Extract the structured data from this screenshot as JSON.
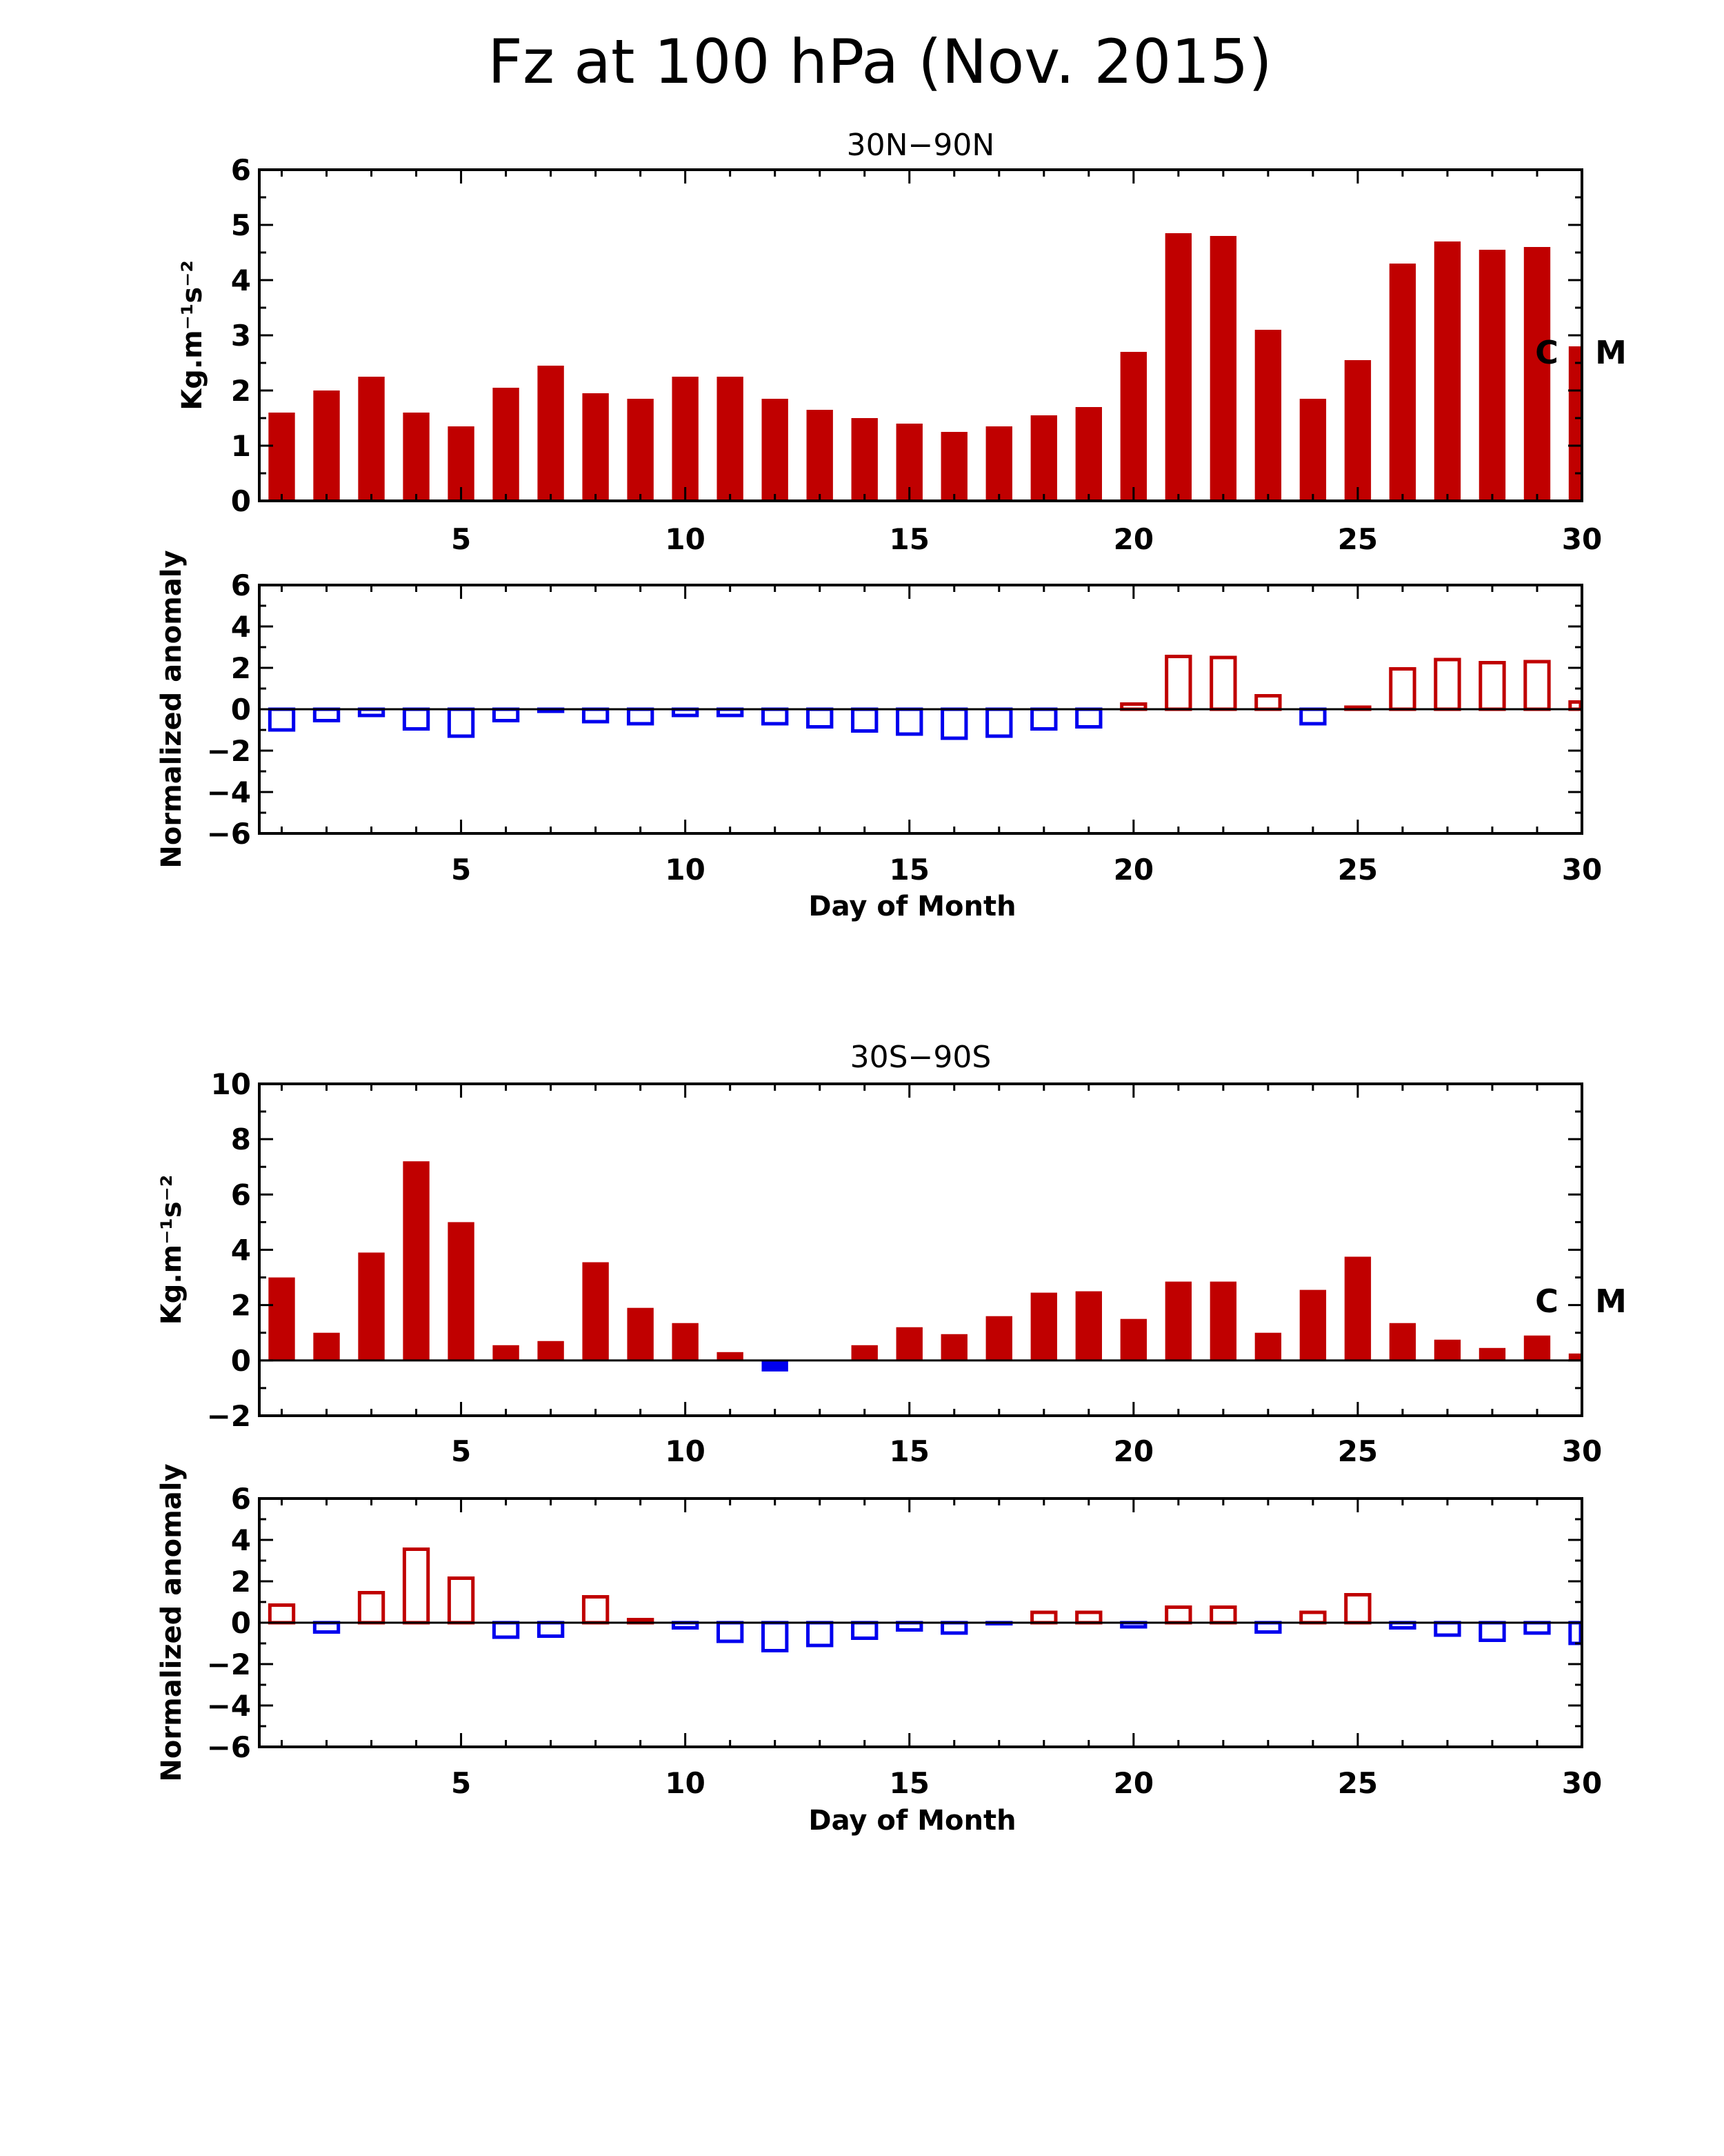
{
  "figure": {
    "title": "Fz at 100 hPa (Nov. 2015)"
  },
  "chart_data": [
    {
      "type": "bar",
      "title": "30N−90N",
      "xlabel": "",
      "ylabel": "Kg.m⁻¹s⁻²",
      "xlim": [
        1,
        30
      ],
      "ylim": [
        0,
        6
      ],
      "xticks": [
        5,
        10,
        15,
        20,
        25,
        30
      ],
      "yticks": [
        0,
        1,
        2,
        3,
        4,
        5,
        6
      ],
      "x": [
        1,
        2,
        3,
        4,
        5,
        6,
        7,
        8,
        9,
        10,
        11,
        12,
        13,
        14,
        15,
        16,
        17,
        18,
        19,
        20,
        21,
        22,
        23,
        24,
        25,
        26,
        27,
        28,
        29,
        30
      ],
      "values": [
        1.6,
        2.0,
        2.25,
        1.6,
        1.35,
        2.05,
        2.45,
        1.95,
        1.85,
        2.25,
        2.25,
        1.85,
        1.65,
        1.5,
        1.4,
        1.25,
        1.35,
        1.55,
        1.7,
        2.7,
        4.85,
        4.8,
        3.1,
        1.85,
        2.55,
        4.3,
        4.7,
        4.55,
        4.6,
        2.8
      ],
      "fill": "solid",
      "positive_color": "#c00000",
      "negative_color": "#0000ee",
      "annotations": [
        "C",
        "M"
      ]
    },
    {
      "type": "bar",
      "title": "",
      "xlabel": "Day of Month",
      "ylabel": "Normalized anomaly",
      "xlim": [
        1,
        30
      ],
      "ylim": [
        -6,
        6
      ],
      "xticks": [
        5,
        10,
        15,
        20,
        25,
        30
      ],
      "yticks": [
        -6,
        -4,
        -2,
        0,
        2,
        4,
        6
      ],
      "x": [
        1,
        2,
        3,
        4,
        5,
        6,
        7,
        8,
        9,
        10,
        11,
        12,
        13,
        14,
        15,
        16,
        17,
        18,
        19,
        20,
        21,
        22,
        23,
        24,
        25,
        26,
        27,
        28,
        29,
        30
      ],
      "values": [
        -1.0,
        -0.55,
        -0.3,
        -0.95,
        -1.3,
        -0.55,
        -0.1,
        -0.6,
        -0.7,
        -0.3,
        -0.3,
        -0.7,
        -0.85,
        -1.05,
        -1.2,
        -1.4,
        -1.3,
        -0.95,
        -0.85,
        0.25,
        2.55,
        2.5,
        0.65,
        -0.7,
        0.1,
        1.95,
        2.4,
        2.25,
        2.3,
        0.35
      ],
      "fill": "outline",
      "positive_color": "#c00000",
      "negative_color": "#0000ee"
    },
    {
      "type": "bar",
      "title": "30S−90S",
      "xlabel": "",
      "ylabel": "Kg.m⁻¹s⁻²",
      "xlim": [
        1,
        30
      ],
      "ylim": [
        -2,
        10
      ],
      "xticks": [
        5,
        10,
        15,
        20,
        25,
        30
      ],
      "yticks": [
        -2,
        0,
        2,
        4,
        6,
        8,
        10
      ],
      "x": [
        1,
        2,
        3,
        4,
        5,
        6,
        7,
        8,
        9,
        10,
        11,
        12,
        13,
        14,
        15,
        16,
        17,
        18,
        19,
        20,
        21,
        22,
        23,
        24,
        25,
        26,
        27,
        28,
        29,
        30
      ],
      "values": [
        3.0,
        1.0,
        3.9,
        7.2,
        5.0,
        0.55,
        0.7,
        3.55,
        1.9,
        1.35,
        0.3,
        -0.4,
        0.0,
        0.55,
        1.2,
        0.95,
        1.6,
        2.45,
        2.5,
        1.5,
        2.85,
        2.85,
        1.0,
        2.55,
        3.75,
        1.35,
        0.75,
        0.45,
        0.9,
        0.25
      ],
      "fill": "solid",
      "positive_color": "#c00000",
      "negative_color": "#0000ee",
      "annotations": [
        "C",
        "M"
      ]
    },
    {
      "type": "bar",
      "title": "",
      "xlabel": "Day of Month",
      "ylabel": "Normalized anomaly",
      "xlim": [
        1,
        30
      ],
      "ylim": [
        -6,
        6
      ],
      "xticks": [
        5,
        10,
        15,
        20,
        25,
        30
      ],
      "yticks": [
        -6,
        -4,
        -2,
        0,
        2,
        4,
        6
      ],
      "x": [
        1,
        2,
        3,
        4,
        5,
        6,
        7,
        8,
        9,
        10,
        11,
        12,
        13,
        14,
        15,
        16,
        17,
        18,
        19,
        20,
        21,
        22,
        23,
        24,
        25,
        26,
        27,
        28,
        29,
        30
      ],
      "values": [
        0.85,
        -0.45,
        1.45,
        3.55,
        2.15,
        -0.7,
        -0.65,
        1.25,
        0.15,
        -0.25,
        -0.9,
        -1.35,
        -1.1,
        -0.75,
        -0.35,
        -0.5,
        -0.05,
        0.5,
        0.5,
        -0.2,
        0.75,
        0.75,
        -0.45,
        0.5,
        1.35,
        -0.25,
        -0.6,
        -0.85,
        -0.5,
        -1.0
      ],
      "fill": "outline",
      "positive_color": "#c00000",
      "negative_color": "#0000ee"
    }
  ]
}
